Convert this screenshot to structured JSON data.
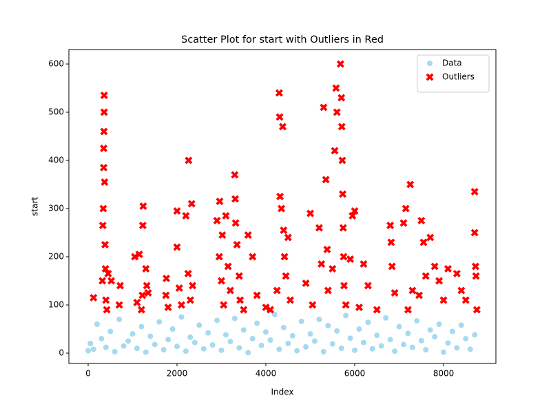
{
  "chart_data": {
    "type": "scatter",
    "title": "Scatter Plot for start with Outliers in Red",
    "x_label": "Index",
    "y_label": "start",
    "xlim": [
      -434,
      9178
    ],
    "ylim": [
      -21.4,
      630
    ],
    "xticks": [
      0,
      2000,
      4000,
      6000,
      8000
    ],
    "yticks": [
      0,
      100,
      200,
      300,
      400,
      500,
      600
    ],
    "legend": "upper right",
    "series": [
      {
        "name": "Data",
        "color": "#87ceeb",
        "marker": "circle",
        "x": [
          0,
          50,
          120,
          200,
          300,
          400,
          500,
          600,
          700,
          800,
          900,
          1000,
          1100,
          1200,
          1300,
          1400,
          1500,
          1600,
          1700,
          1800,
          1900,
          2000,
          2100,
          2200,
          2300,
          2400,
          2500,
          2600,
          2700,
          2800,
          2900,
          3000,
          3100,
          3200,
          3300,
          3400,
          3500,
          3600,
          3700,
          3800,
          3900,
          4000,
          4100,
          4200,
          4300,
          4400,
          4500,
          4600,
          4700,
          4800,
          4900,
          5000,
          5100,
          5200,
          5300,
          5400,
          5500,
          5600,
          5700,
          5800,
          5900,
          6000,
          6100,
          6200,
          6300,
          6400,
          6500,
          6600,
          6700,
          6800,
          6900,
          7000,
          7100,
          7200,
          7300,
          7400,
          7500,
          7600,
          7700,
          7800,
          7900,
          8000,
          8100,
          8200,
          8300,
          8400,
          8500,
          8600,
          8700
        ],
        "values": [
          5,
          20,
          8,
          60,
          30,
          12,
          45,
          3,
          70,
          15,
          25,
          40,
          10,
          55,
          2,
          35,
          18,
          65,
          7,
          28,
          50,
          14,
          75,
          4,
          33,
          22,
          58,
          9,
          42,
          17,
          68,
          6,
          38,
          24,
          72,
          11,
          48,
          1,
          30,
          62,
          16,
          44,
          27,
          80,
          8,
          53,
          20,
          36,
          5,
          66,
          13,
          40,
          25,
          70,
          3,
          57,
          19,
          46,
          10,
          78,
          31,
          6,
          50,
          22,
          64,
          9,
          37,
          15,
          73,
          28,
          4,
          55,
          18,
          41,
          12,
          67,
          26,
          7,
          48,
          34,
          60,
          2,
          21,
          45,
          11,
          58,
          30,
          8,
          38
        ]
      },
      {
        "name": "Outliers",
        "color": "#ff0000",
        "marker": "x",
        "x": [
          120,
          320,
          330,
          340,
          350,
          350,
          355,
          360,
          360,
          370,
          380,
          390,
          400,
          420,
          450,
          520,
          700,
          720,
          1050,
          1100,
          1150,
          1200,
          1220,
          1230,
          1240,
          1300,
          1320,
          1350,
          1750,
          1760,
          1800,
          2000,
          2000,
          2050,
          2100,
          2200,
          2250,
          2260,
          2300,
          2330,
          2350,
          2900,
          2950,
          2960,
          3000,
          3020,
          3050,
          3100,
          3150,
          3200,
          3300,
          3310,
          3320,
          3350,
          3400,
          3420,
          3500,
          3600,
          3700,
          3800,
          4000,
          4100,
          4250,
          4300,
          4310,
          4320,
          4350,
          4380,
          4400,
          4420,
          4450,
          4500,
          4550,
          4900,
          5000,
          5050,
          5200,
          5250,
          5300,
          5350,
          5380,
          5400,
          5500,
          5550,
          5580,
          5600,
          5680,
          5700,
          5710,
          5720,
          5730,
          5740,
          5750,
          5760,
          5800,
          5900,
          5950,
          6000,
          6100,
          6200,
          6300,
          6500,
          6800,
          6820,
          6840,
          6900,
          7100,
          7150,
          7200,
          7250,
          7300,
          7450,
          7500,
          7550,
          7600,
          7700,
          7800,
          7900,
          8000,
          8100,
          8300,
          8400,
          8500,
          8700,
          8700,
          8720,
          8730,
          8750
        ],
        "values": [
          115,
          150,
          265,
          300,
          385,
          425,
          460,
          500,
          535,
          355,
          225,
          175,
          110,
          90,
          165,
          150,
          100,
          140,
          200,
          105,
          205,
          90,
          120,
          265,
          305,
          175,
          140,
          125,
          120,
          155,
          95,
          295,
          220,
          135,
          100,
          285,
          165,
          400,
          110,
          310,
          140,
          275,
          200,
          315,
          150,
          245,
          100,
          285,
          180,
          130,
          370,
          320,
          270,
          225,
          160,
          110,
          90,
          245,
          200,
          120,
          95,
          90,
          130,
          540,
          490,
          325,
          300,
          470,
          255,
          200,
          160,
          240,
          110,
          145,
          290,
          100,
          260,
          185,
          510,
          360,
          215,
          130,
          175,
          420,
          550,
          500,
          600,
          530,
          470,
          400,
          330,
          260,
          200,
          140,
          100,
          195,
          285,
          295,
          95,
          185,
          140,
          90,
          265,
          230,
          180,
          125,
          270,
          300,
          90,
          350,
          130,
          120,
          275,
          230,
          160,
          240,
          180,
          150,
          110,
          175,
          165,
          130,
          110,
          335,
          250,
          180,
          160,
          90
        ]
      }
    ]
  }
}
